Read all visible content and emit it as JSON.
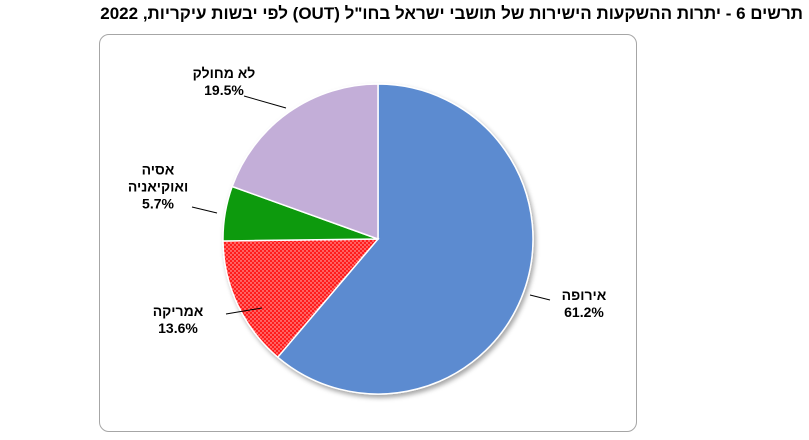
{
  "chart_data": {
    "type": "pie",
    "title": "תרשים 6 - יתרות ההשקעות הישירות של תושבי ישראל בחו\"ל (OUT) לפי יבשות עיקריות, 2022",
    "slices": [
      {
        "name": "אירופה",
        "value": 61.2,
        "value_label": "61.2%",
        "color": "#5b8bd0",
        "pattern": "none"
      },
      {
        "name": "אמריקה",
        "value": 13.6,
        "value_label": "13.6%",
        "color": "#ff1a1a",
        "pattern": "dots"
      },
      {
        "name": "אסיה ואוקיאניה",
        "name_lines": [
          "אסיה",
          "ואוקיאניה"
        ],
        "value": 5.7,
        "value_label": "5.7%",
        "color": "#0a9a0a",
        "pattern": "none"
      },
      {
        "name": "לא מחולק",
        "value": 19.5,
        "value_label": "19.5%",
        "color": "#c3aed8",
        "pattern": "none"
      }
    ],
    "start_angle_deg": 0,
    "direction": "clockwise",
    "legend": "none"
  }
}
